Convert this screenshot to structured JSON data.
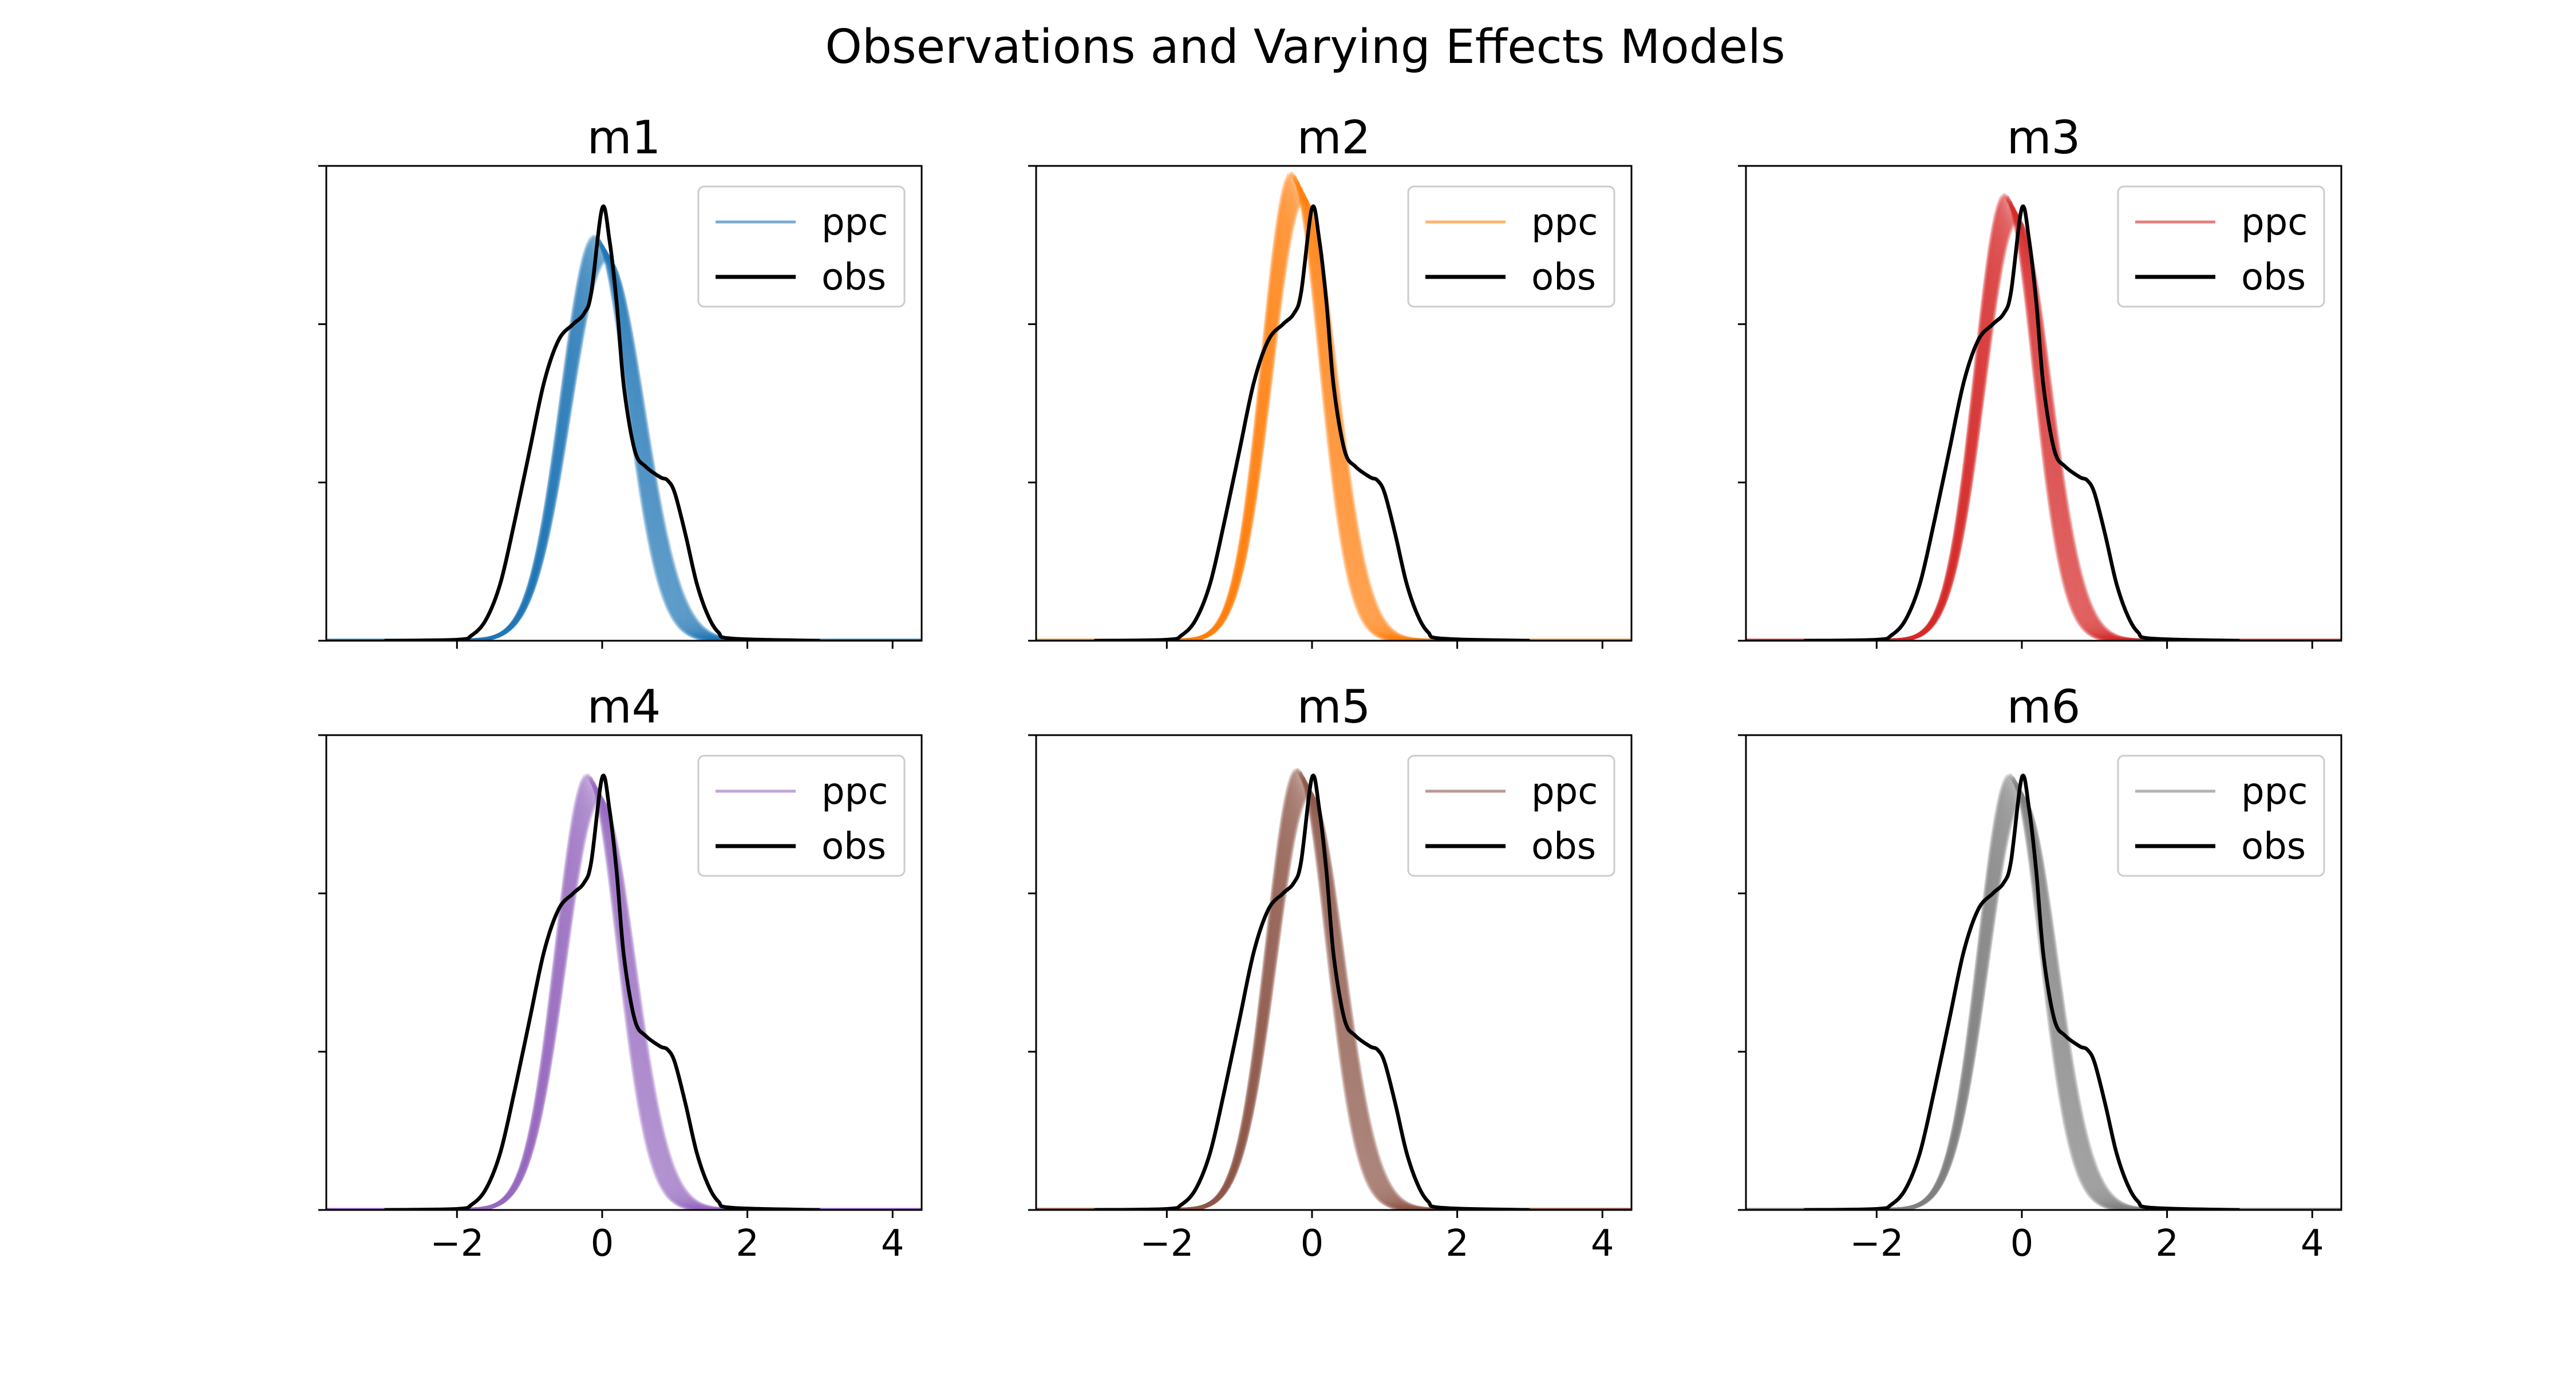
{
  "figure": {
    "title": "Observations and Varying Effects Models"
  },
  "chart_data": [
    {
      "type": "line",
      "title": "m1",
      "color": "#1f77b4",
      "legend_position": "top-right",
      "xlim": [
        -3.8,
        4.4
      ],
      "ylim": [
        0,
        0.45
      ],
      "xticks": [
        -2,
        0,
        2,
        4
      ],
      "yticks": [
        0,
        0.15,
        0.3,
        0.45
      ],
      "series": [
        {
          "name": "ppc",
          "peak": 0.372,
          "center": -0.02,
          "sigma": 0.48
        },
        {
          "name": "obs",
          "points": [
            [
              -3,
              0
            ],
            [
              -2.0,
              0.001
            ],
            [
              -1.8,
              0.005
            ],
            [
              -1.6,
              0.02
            ],
            [
              -1.4,
              0.055
            ],
            [
              -1.2,
              0.115
            ],
            [
              -1.0,
              0.18
            ],
            [
              -0.8,
              0.245
            ],
            [
              -0.6,
              0.285
            ],
            [
              -0.4,
              0.3
            ],
            [
              -0.25,
              0.31
            ],
            [
              -0.15,
              0.33
            ],
            [
              0.0,
              0.41
            ],
            [
              0.1,
              0.38
            ],
            [
              0.2,
              0.32
            ],
            [
              0.3,
              0.24
            ],
            [
              0.45,
              0.18
            ],
            [
              0.6,
              0.165
            ],
            [
              0.8,
              0.155
            ],
            [
              0.9,
              0.152
            ],
            [
              1.0,
              0.14
            ],
            [
              1.15,
              0.1
            ],
            [
              1.3,
              0.055
            ],
            [
              1.45,
              0.025
            ],
            [
              1.6,
              0.008
            ],
            [
              1.8,
              0.002
            ],
            [
              3,
              0
            ]
          ]
        }
      ]
    },
    {
      "type": "line",
      "title": "m2",
      "color": "#ff7f0e",
      "legend_position": "top-right",
      "xlim": [
        -3.8,
        4.4
      ],
      "ylim": [
        0,
        0.45
      ],
      "xticks": [
        -2,
        0,
        2,
        4
      ],
      "yticks": [
        0,
        0.15,
        0.3,
        0.45
      ],
      "series": [
        {
          "name": "ppc",
          "peak": 0.43,
          "center": -0.2,
          "sigma": 0.42
        },
        {
          "name": "obs",
          "points": [
            [
              -3,
              0
            ],
            [
              -2.0,
              0.001
            ],
            [
              -1.8,
              0.005
            ],
            [
              -1.6,
              0.02
            ],
            [
              -1.4,
              0.055
            ],
            [
              -1.2,
              0.115
            ],
            [
              -1.0,
              0.18
            ],
            [
              -0.8,
              0.245
            ],
            [
              -0.6,
              0.285
            ],
            [
              -0.4,
              0.3
            ],
            [
              -0.25,
              0.31
            ],
            [
              -0.15,
              0.33
            ],
            [
              0.0,
              0.41
            ],
            [
              0.1,
              0.38
            ],
            [
              0.2,
              0.32
            ],
            [
              0.3,
              0.24
            ],
            [
              0.45,
              0.18
            ],
            [
              0.6,
              0.165
            ],
            [
              0.8,
              0.155
            ],
            [
              0.9,
              0.152
            ],
            [
              1.0,
              0.14
            ],
            [
              1.15,
              0.1
            ],
            [
              1.3,
              0.055
            ],
            [
              1.45,
              0.025
            ],
            [
              1.6,
              0.008
            ],
            [
              1.8,
              0.002
            ],
            [
              3,
              0
            ]
          ]
        }
      ]
    },
    {
      "type": "line",
      "title": "m3",
      "color": "#d62728",
      "legend_position": "top-right",
      "xlim": [
        -3.8,
        4.4
      ],
      "ylim": [
        0,
        0.45
      ],
      "xticks": [
        -2,
        0,
        2,
        4
      ],
      "yticks": [
        0,
        0.15,
        0.3,
        0.45
      ],
      "series": [
        {
          "name": "ppc",
          "peak": 0.41,
          "center": -0.15,
          "sigma": 0.43
        },
        {
          "name": "obs",
          "points": [
            [
              -3,
              0
            ],
            [
              -2.0,
              0.001
            ],
            [
              -1.8,
              0.005
            ],
            [
              -1.6,
              0.02
            ],
            [
              -1.4,
              0.055
            ],
            [
              -1.2,
              0.115
            ],
            [
              -1.0,
              0.18
            ],
            [
              -0.8,
              0.245
            ],
            [
              -0.6,
              0.285
            ],
            [
              -0.4,
              0.3
            ],
            [
              -0.25,
              0.31
            ],
            [
              -0.15,
              0.33
            ],
            [
              0.0,
              0.41
            ],
            [
              0.1,
              0.38
            ],
            [
              0.2,
              0.32
            ],
            [
              0.3,
              0.24
            ],
            [
              0.45,
              0.18
            ],
            [
              0.6,
              0.165
            ],
            [
              0.8,
              0.155
            ],
            [
              0.9,
              0.152
            ],
            [
              1.0,
              0.14
            ],
            [
              1.15,
              0.1
            ],
            [
              1.3,
              0.055
            ],
            [
              1.45,
              0.025
            ],
            [
              1.6,
              0.008
            ],
            [
              1.8,
              0.002
            ],
            [
              3,
              0
            ]
          ]
        }
      ]
    },
    {
      "type": "line",
      "title": "m4",
      "color": "#9467bd",
      "legend_position": "top-right",
      "xlim": [
        -3.8,
        4.4
      ],
      "ylim": [
        0,
        0.45
      ],
      "xticks": [
        -2,
        0,
        2,
        4
      ],
      "yticks": [
        0,
        0.15,
        0.3,
        0.45
      ],
      "series": [
        {
          "name": "ppc",
          "peak": 0.4,
          "center": -0.12,
          "sigma": 0.45
        },
        {
          "name": "obs",
          "points": [
            [
              -3,
              0
            ],
            [
              -2.0,
              0.001
            ],
            [
              -1.8,
              0.005
            ],
            [
              -1.6,
              0.02
            ],
            [
              -1.4,
              0.055
            ],
            [
              -1.2,
              0.115
            ],
            [
              -1.0,
              0.18
            ],
            [
              -0.8,
              0.245
            ],
            [
              -0.6,
              0.285
            ],
            [
              -0.4,
              0.3
            ],
            [
              -0.25,
              0.31
            ],
            [
              -0.15,
              0.33
            ],
            [
              0.0,
              0.41
            ],
            [
              0.1,
              0.38
            ],
            [
              0.2,
              0.32
            ],
            [
              0.3,
              0.24
            ],
            [
              0.45,
              0.18
            ],
            [
              0.6,
              0.165
            ],
            [
              0.8,
              0.155
            ],
            [
              0.9,
              0.152
            ],
            [
              1.0,
              0.14
            ],
            [
              1.15,
              0.1
            ],
            [
              1.3,
              0.055
            ],
            [
              1.45,
              0.025
            ],
            [
              1.6,
              0.008
            ],
            [
              1.8,
              0.002
            ],
            [
              3,
              0
            ]
          ]
        }
      ]
    },
    {
      "type": "line",
      "title": "m5",
      "color": "#8c564b",
      "legend_position": "top-right",
      "xlim": [
        -3.8,
        4.4
      ],
      "ylim": [
        0,
        0.45
      ],
      "xticks": [
        -2,
        0,
        2,
        4
      ],
      "yticks": [
        0,
        0.15,
        0.3,
        0.45
      ],
      "series": [
        {
          "name": "ppc",
          "peak": 0.405,
          "center": -0.12,
          "sigma": 0.44
        },
        {
          "name": "obs",
          "points": [
            [
              -3,
              0
            ],
            [
              -2.0,
              0.001
            ],
            [
              -1.8,
              0.005
            ],
            [
              -1.6,
              0.02
            ],
            [
              -1.4,
              0.055
            ],
            [
              -1.2,
              0.115
            ],
            [
              -1.0,
              0.18
            ],
            [
              -0.8,
              0.245
            ],
            [
              -0.6,
              0.285
            ],
            [
              -0.4,
              0.3
            ],
            [
              -0.25,
              0.31
            ],
            [
              -0.15,
              0.33
            ],
            [
              0.0,
              0.41
            ],
            [
              0.1,
              0.38
            ],
            [
              0.2,
              0.32
            ],
            [
              0.3,
              0.24
            ],
            [
              0.45,
              0.18
            ],
            [
              0.6,
              0.165
            ],
            [
              0.8,
              0.155
            ],
            [
              0.9,
              0.152
            ],
            [
              1.0,
              0.14
            ],
            [
              1.15,
              0.1
            ],
            [
              1.3,
              0.055
            ],
            [
              1.45,
              0.025
            ],
            [
              1.6,
              0.008
            ],
            [
              1.8,
              0.002
            ],
            [
              3,
              0
            ]
          ]
        }
      ]
    },
    {
      "type": "line",
      "title": "m6",
      "color": "#7f7f7f",
      "legend_position": "top-right",
      "xlim": [
        -3.8,
        4.4
      ],
      "ylim": [
        0,
        0.45
      ],
      "xticks": [
        -2,
        0,
        2,
        4
      ],
      "yticks": [
        0,
        0.15,
        0.3,
        0.45
      ],
      "series": [
        {
          "name": "ppc",
          "peak": 0.4,
          "center": -0.08,
          "sigma": 0.45
        },
        {
          "name": "obs",
          "points": [
            [
              -3,
              0
            ],
            [
              -2.0,
              0.001
            ],
            [
              -1.8,
              0.005
            ],
            [
              -1.6,
              0.02
            ],
            [
              -1.4,
              0.055
            ],
            [
              -1.2,
              0.115
            ],
            [
              -1.0,
              0.18
            ],
            [
              -0.8,
              0.245
            ],
            [
              -0.6,
              0.285
            ],
            [
              -0.4,
              0.3
            ],
            [
              -0.25,
              0.31
            ],
            [
              -0.15,
              0.33
            ],
            [
              0.0,
              0.41
            ],
            [
              0.1,
              0.38
            ],
            [
              0.2,
              0.32
            ],
            [
              0.3,
              0.24
            ],
            [
              0.45,
              0.18
            ],
            [
              0.6,
              0.165
            ],
            [
              0.8,
              0.155
            ],
            [
              0.9,
              0.152
            ],
            [
              1.0,
              0.14
            ],
            [
              1.15,
              0.1
            ],
            [
              1.3,
              0.055
            ],
            [
              1.45,
              0.025
            ],
            [
              1.6,
              0.008
            ],
            [
              1.8,
              0.002
            ],
            [
              3,
              0
            ]
          ]
        }
      ]
    }
  ]
}
